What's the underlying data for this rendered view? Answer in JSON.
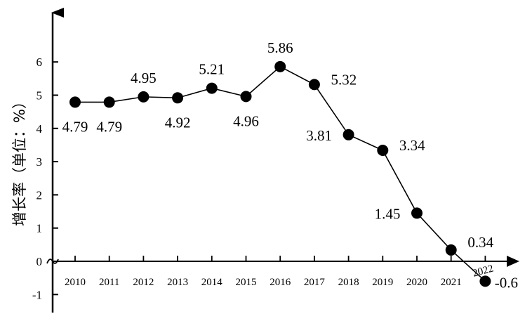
{
  "chart_data": {
    "type": "line",
    "title": "",
    "xlabel": "",
    "ylabel": "增长率（单位：%）",
    "x": [
      "2010",
      "2011",
      "2012",
      "2013",
      "2014",
      "2015",
      "2016",
      "2017",
      "2018",
      "2019",
      "2020",
      "2021",
      "2022"
    ],
    "series": [
      {
        "values": [
          4.79,
          4.79,
          4.95,
          4.92,
          5.21,
          4.96,
          5.86,
          5.32,
          3.81,
          3.34,
          1.45,
          0.34,
          -0.6
        ]
      }
    ],
    "labels": [
      "4.79",
      "4.79",
      "4.95",
      "4.92",
      "5.21",
      "4.96",
      "5.86",
      "5.32",
      "3.81",
      "3.34",
      "1.45",
      "0.34",
      "-0.6"
    ],
    "yticks": [
      "-1",
      "0",
      "1",
      "2",
      "3",
      "4",
      "5",
      "6"
    ],
    "ylim": [
      -1,
      7
    ],
    "grid": false,
    "legend": "none",
    "axis_break_on_y": true,
    "colors": {
      "line": "#000000",
      "marker": "#000000"
    }
  }
}
